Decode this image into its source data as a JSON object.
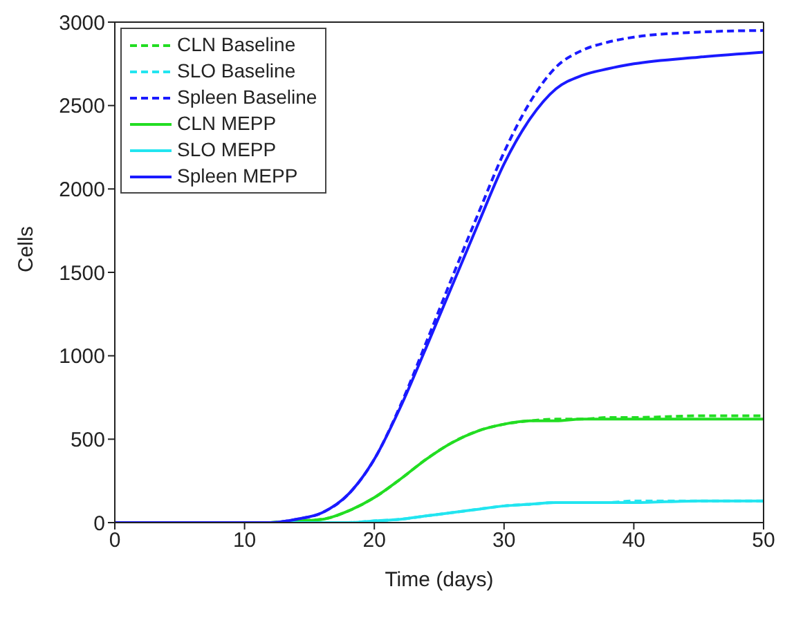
{
  "chart_data": {
    "type": "line",
    "xlabel": "Time (days)",
    "ylabel": "Cells",
    "x": [
      0,
      10,
      12,
      14,
      16,
      18,
      20,
      22,
      24,
      26,
      28,
      30,
      32,
      34,
      36,
      38,
      40,
      45,
      50
    ],
    "series": [
      {
        "name": "CLN Baseline",
        "color": "#22dd22",
        "line_style": "dashed",
        "values": [
          null,
          null,
          0,
          10,
          20,
          70,
          150,
          260,
          380,
          480,
          550,
          590,
          610,
          620,
          620,
          630,
          630,
          640,
          640
        ]
      },
      {
        "name": "SLO Baseline",
        "color": "#22e5f0",
        "line_style": "dashed",
        "values": [
          null,
          null,
          0,
          0,
          0,
          0,
          10,
          20,
          40,
          60,
          80,
          100,
          110,
          120,
          120,
          120,
          130,
          130,
          130
        ]
      },
      {
        "name": "Spleen Baseline",
        "color": "#1a1aff",
        "line_style": "dashed",
        "values": [
          0,
          0,
          0,
          20,
          60,
          170,
          380,
          700,
          1080,
          1470,
          1850,
          2220,
          2520,
          2730,
          2830,
          2880,
          2910,
          2940,
          2950
        ]
      },
      {
        "name": "CLN MEPP",
        "color": "#22dd22",
        "line_style": "solid",
        "values": [
          null,
          null,
          0,
          10,
          20,
          70,
          150,
          260,
          380,
          480,
          550,
          590,
          610,
          610,
          620,
          620,
          620,
          620,
          620
        ]
      },
      {
        "name": "SLO MEPP",
        "color": "#22e5f0",
        "line_style": "solid",
        "values": [
          null,
          null,
          0,
          0,
          0,
          0,
          10,
          20,
          40,
          60,
          80,
          100,
          110,
          120,
          120,
          120,
          120,
          130,
          130
        ]
      },
      {
        "name": "Spleen MEPP",
        "color": "#1a1aff",
        "line_style": "solid",
        "values": [
          0,
          0,
          0,
          20,
          60,
          170,
          380,
          690,
          1050,
          1420,
          1790,
          2150,
          2420,
          2600,
          2680,
          2720,
          2750,
          2790,
          2820
        ]
      }
    ],
    "xlim": [
      0,
      50
    ],
    "xticks": [
      0,
      10,
      20,
      30,
      40,
      50
    ],
    "ylim": [
      0,
      3000
    ],
    "yticks": [
      0,
      500,
      1000,
      1500,
      2000,
      2500,
      3000
    ],
    "grid": false,
    "legend": "top left"
  }
}
